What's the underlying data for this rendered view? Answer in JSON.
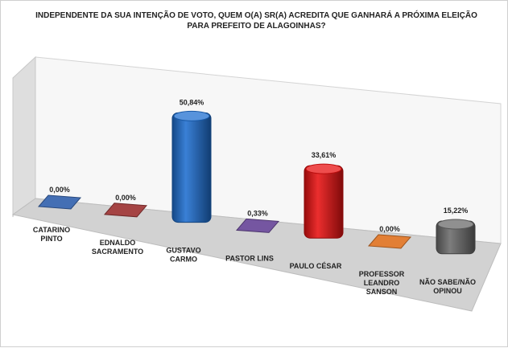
{
  "chart_data": {
    "type": "bar",
    "title": "INDEPENDENTE DA SUA INTENÇÃO DE VOTO, QUEM O(A) SR(A) ACREDITA QUE GANHARÁ A PRÓXIMA ELEIÇÃO PARA PREFEITO DE ALAGOINHAS?",
    "categories": [
      [
        "CATARINO",
        "PINTO"
      ],
      [
        "EDNALDO",
        "SACRAMENTO"
      ],
      [
        "GUSTAVO",
        "CARMO"
      ],
      [
        "PASTOR LINS"
      ],
      [
        "PAULO CÉSAR"
      ],
      [
        "PROFESSOR",
        "LEANDRO",
        "SANSON"
      ],
      [
        "NÃO SABE/NÃO",
        "OPINOU"
      ]
    ],
    "values": [
      0.0,
      0.0,
      50.84,
      0.33,
      33.61,
      0.0,
      15.22
    ],
    "value_labels": [
      "0,00%",
      "0,00%",
      "50,84%",
      "0,33%",
      "33,61%",
      "0,00%",
      "15,22%"
    ],
    "colors": [
      "#3a67b0",
      "#a03a3a",
      "#1f6fd0",
      "#6e4d9c",
      "#e81212",
      "#e0782a",
      "#6b6b6b"
    ],
    "style": "3d-cylinder-bars",
    "grid": false,
    "legend": "none"
  }
}
